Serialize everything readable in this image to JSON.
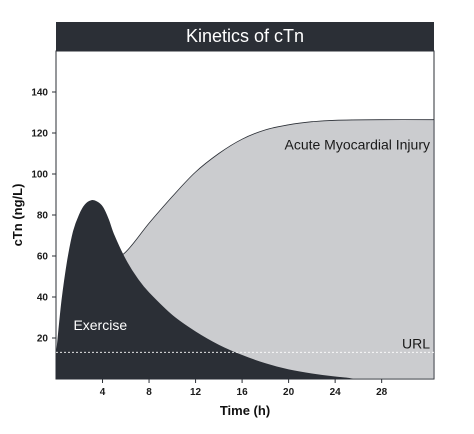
{
  "chart_data": {
    "type": "area",
    "title": "Kinetics of cTn",
    "xlabel": "Time (h)",
    "ylabel": "cTn (ng/L)",
    "xlim": [
      0,
      32.5
    ],
    "ylim": [
      0,
      160
    ],
    "x_ticks": [
      4,
      8,
      12,
      16,
      20,
      24,
      28
    ],
    "y_ticks": [
      20,
      40,
      60,
      80,
      100,
      120,
      140
    ],
    "grid": false,
    "series": [
      {
        "name": "Acute Myocardial Injury",
        "fill": "#cbcccf",
        "points": [
          [
            4,
            54
          ],
          [
            6,
            62
          ],
          [
            8,
            76
          ],
          [
            10,
            89
          ],
          [
            12,
            101
          ],
          [
            14,
            110
          ],
          [
            16,
            117
          ],
          [
            18,
            121.5
          ],
          [
            20,
            124
          ],
          [
            22,
            125.5
          ],
          [
            24,
            126.2
          ],
          [
            28,
            126.5
          ],
          [
            32.5,
            126.5
          ]
        ]
      },
      {
        "name": "Exercise",
        "fill": "#2b2f36",
        "points": [
          [
            0,
            10
          ],
          [
            0.5,
            38
          ],
          [
            1,
            58
          ],
          [
            1.5,
            72
          ],
          [
            2,
            80
          ],
          [
            2.5,
            85
          ],
          [
            3,
            87
          ],
          [
            3.5,
            86.5
          ],
          [
            4,
            84
          ],
          [
            4.5,
            78
          ],
          [
            5,
            70
          ],
          [
            6,
            58
          ],
          [
            7,
            49
          ],
          [
            8,
            42
          ],
          [
            10,
            31
          ],
          [
            12,
            23
          ],
          [
            14,
            16.5
          ],
          [
            16,
            11.5
          ],
          [
            18,
            7.5
          ],
          [
            20,
            4.5
          ],
          [
            22,
            2.5
          ],
          [
            24,
            1
          ],
          [
            25,
            0.5
          ],
          [
            25.5,
            0
          ]
        ]
      }
    ],
    "reference_lines": [
      {
        "name": "URL",
        "y": 13,
        "style": "dashed"
      }
    ],
    "colors": {
      "title_bar": "#2b2f36",
      "title_text": "#ffffff",
      "exercise_label": "#ffffff",
      "injury_label": "#1a1a1a",
      "url_line": "#ffffff",
      "url_label": "#1a1a1a"
    }
  }
}
